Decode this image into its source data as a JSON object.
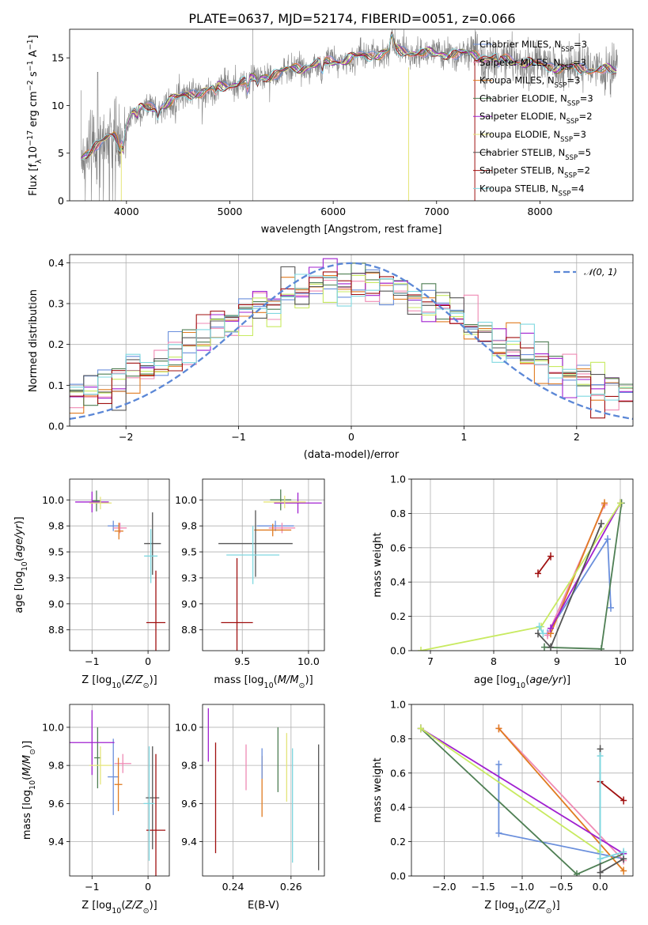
{
  "title": "PLATE=0637, MJD=52174, FIBERID=0051, z=0.066",
  "colors": {
    "chabrier_miles": "#6a8fdc",
    "salpeter_miles": "#ef8ab4",
    "kroupa_miles": "#e07b20",
    "chabrier_elodie": "#4f7f54",
    "salpeter_elodie": "#a020d0",
    "kroupa_elodie": "#e5e57a",
    "chabrier_stelib": "#555555",
    "salpeter_stelib": "#a01010",
    "kroupa_stelib": "#7fd8e0",
    "data": "#808080",
    "normal": "#5b87d6",
    "gold": "#c8ea60"
  },
  "chart_data": [
    {
      "id": "spectrum",
      "type": "line",
      "xlabel": "wavelength [Angstrom, rest frame]",
      "ylabel": "Flux [f_λ 10^-17 erg cm^-2 s^-1 A^-1]",
      "xlim": [
        3450,
        8900
      ],
      "ylim": [
        0,
        18
      ],
      "xticks": [
        4000,
        5000,
        6000,
        7000,
        8000
      ],
      "yticks": [
        0,
        5,
        10,
        15
      ],
      "legend_position": "upper right",
      "legend": [
        {
          "color_key": "chabrier_miles",
          "label": "Chabrier MILES, N",
          "sub": "SSP",
          "tail": "=3"
        },
        {
          "color_key": "salpeter_miles",
          "label": "Salpeter MILES, N",
          "sub": "SSP",
          "tail": "=3"
        },
        {
          "color_key": "kroupa_miles",
          "label": "Kroupa MILES, N",
          "sub": "SSP",
          "tail": "=3"
        },
        {
          "color_key": "chabrier_elodie",
          "label": "Chabrier ELODIE, N",
          "sub": "SSP",
          "tail": "=3"
        },
        {
          "color_key": "salpeter_elodie",
          "label": "Salpeter ELODIE, N",
          "sub": "SSP",
          "tail": "=2"
        },
        {
          "color_key": "kroupa_elodie",
          "label": "Kroupa ELODIE, N",
          "sub": "SSP",
          "tail": "=3"
        },
        {
          "color_key": "chabrier_stelib",
          "label": "Chabrier STELIB, N",
          "sub": "SSP",
          "tail": "=5"
        },
        {
          "color_key": "salpeter_stelib",
          "label": "Salpeter STELIB, N",
          "sub": "SSP",
          "tail": "=2"
        },
        {
          "color_key": "kroupa_stelib",
          "label": "Kroupa STELIB, N",
          "sub": "SSP",
          "tail": "=4"
        }
      ],
      "continuum": [
        [
          3560,
          4.4
        ],
        [
          3650,
          5.4
        ],
        [
          3700,
          5.8
        ],
        [
          3800,
          6.4
        ],
        [
          3880,
          6.8
        ],
        [
          3930,
          6.0
        ],
        [
          3970,
          6.4
        ],
        [
          4000,
          8.2
        ],
        [
          4050,
          9.4
        ],
        [
          4150,
          9.6
        ],
        [
          4300,
          9.7
        ],
        [
          4400,
          10.4
        ],
        [
          4600,
          11.2
        ],
        [
          4800,
          11.7
        ],
        [
          5000,
          12.2
        ],
        [
          5200,
          12.7
        ],
        [
          5400,
          13.2
        ],
        [
          5600,
          13.8
        ],
        [
          5800,
          14.2
        ],
        [
          6000,
          14.6
        ],
        [
          6200,
          15.0
        ],
        [
          6400,
          15.4
        ],
        [
          6600,
          15.8
        ],
        [
          6800,
          15.6
        ],
        [
          7000,
          15.4
        ],
        [
          7200,
          15.5
        ],
        [
          7400,
          15.2
        ],
        [
          7600,
          14.8
        ],
        [
          7800,
          14.6
        ],
        [
          8000,
          14.2
        ],
        [
          8200,
          14.0
        ],
        [
          8400,
          13.9
        ],
        [
          8600,
          13.8
        ],
        [
          8750,
          13.6
        ]
      ]
    },
    {
      "id": "residuals",
      "type": "step",
      "xlabel": "(data-model)/error",
      "ylabel": "Normed distribution",
      "xlim": [
        -2.5,
        2.5
      ],
      "ylim": [
        0,
        0.42
      ],
      "xticks": [
        -2,
        -1,
        0,
        1,
        2
      ],
      "yticks": [
        0.0,
        0.1,
        0.2,
        0.3,
        0.4
      ],
      "legend_label": "𝒩(0, 1)",
      "bins": 40
    },
    {
      "id": "age_vs_Z",
      "type": "errorbar",
      "xlabel": "Z [log10(Z/Z⊙)]",
      "ylabel": "age  [log10(age/yr)]",
      "xlim": [
        -1.4,
        0.38
      ],
      "ylim": [
        8.55,
        10.2
      ],
      "xticks": [
        -1,
        0
      ],
      "yticks": [
        8.75,
        9.0,
        9.25,
        9.5,
        9.75,
        10.0
      ],
      "points": [
        {
          "c": "chabrier_miles",
          "x": -0.62,
          "y": 9.75,
          "xe": 0.1,
          "ye": 0.05
        },
        {
          "c": "salpeter_miles",
          "x": -0.5,
          "y": 9.73,
          "xe": 0.12,
          "ye": 0.05
        },
        {
          "c": "kroupa_miles",
          "x": -0.52,
          "y": 9.7,
          "xe": 0.08,
          "ye": 0.08
        },
        {
          "c": "chabrier_elodie",
          "x": -0.92,
          "y": 9.99,
          "xe": 0.08,
          "ye": 0.1
        },
        {
          "c": "salpeter_elodie",
          "x": -1.0,
          "y": 9.98,
          "xe": 0.3,
          "ye": 0.1
        },
        {
          "c": "kroupa_elodie",
          "x": -0.85,
          "y": 9.97,
          "xe": 0.2,
          "ye": 0.06
        },
        {
          "c": "chabrier_stelib",
          "x": 0.08,
          "y": 9.58,
          "xe": 0.15,
          "ye": 0.3
        },
        {
          "c": "salpeter_stelib",
          "x": 0.14,
          "y": 8.82,
          "xe": 0.17,
          "ye": 0.5
        },
        {
          "c": "kroupa_stelib",
          "x": 0.05,
          "y": 9.46,
          "xe": 0.12,
          "ye": 0.26
        }
      ]
    },
    {
      "id": "age_vs_mass",
      "type": "errorbar",
      "xlabel": "mass [log10(M/M⊙)]",
      "ylabel": "",
      "xlim": [
        9.2,
        10.12
      ],
      "ylim": [
        8.55,
        10.2
      ],
      "xticks": [
        9.5,
        10.0
      ],
      "yticks": [
        8.75,
        9.0,
        9.25,
        9.5,
        9.75,
        10.0
      ],
      "points": [
        {
          "c": "chabrier_miles",
          "x": 9.75,
          "y": 9.75,
          "xe": 0.14,
          "ye": 0.05
        },
        {
          "c": "salpeter_miles",
          "x": 9.8,
          "y": 9.73,
          "xe": 0.1,
          "ye": 0.05
        },
        {
          "c": "kroupa_miles",
          "x": 9.73,
          "y": 9.71,
          "xe": 0.14,
          "ye": 0.06
        },
        {
          "c": "chabrier_elodie",
          "x": 9.79,
          "y": 10.0,
          "xe": 0.08,
          "ye": 0.1
        },
        {
          "c": "salpeter_elodie",
          "x": 9.92,
          "y": 9.97,
          "xe": 0.18,
          "ye": 0.1
        },
        {
          "c": "kroupa_elodie",
          "x": 9.82,
          "y": 9.98,
          "xe": 0.16,
          "ye": 0.06
        },
        {
          "c": "chabrier_stelib",
          "x": 9.6,
          "y": 9.58,
          "xe": 0.28,
          "ye": 0.32
        },
        {
          "c": "salpeter_stelib",
          "x": 9.46,
          "y": 8.82,
          "xe": 0.12,
          "ye": 0.62
        },
        {
          "c": "kroupa_stelib",
          "x": 9.58,
          "y": 9.47,
          "xe": 0.2,
          "ye": 0.28
        }
      ]
    },
    {
      "id": "weight_vs_age",
      "type": "line",
      "xlabel": "age  [log10(age/yr)]",
      "ylabel": "mass weight",
      "xlim": [
        6.7,
        10.2
      ],
      "ylim": [
        0,
        1.0
      ],
      "xticks": [
        7,
        8,
        9,
        10
      ],
      "yticks": [
        0.0,
        0.2,
        0.4,
        0.6,
        0.8,
        1.0
      ],
      "series": [
        {
          "c": "chabrier_miles",
          "x": [
            8.85,
            9.8,
            9.85
          ],
          "y": [
            0.1,
            0.65,
            0.25
          ]
        },
        {
          "c": "salpeter_miles",
          "x": [
            8.85,
            9.75
          ],
          "y": [
            0.09,
            0.85
          ]
        },
        {
          "c": "kroupa_miles",
          "x": [
            8.9,
            9.75
          ],
          "y": [
            0.1,
            0.86
          ]
        },
        {
          "c": "chabrier_elodie",
          "x": [
            8.8,
            9.7,
            10.02
          ],
          "y": [
            0.02,
            0.01,
            0.86
          ]
        },
        {
          "c": "salpeter_elodie",
          "x": [
            8.9,
            10.0
          ],
          "y": [
            0.13,
            0.86
          ]
        },
        {
          "c": "kroupa_elodie",
          "x": [
            6.85,
            8.75,
            10.0
          ],
          "y": [
            0.0,
            0.14,
            0.86
          ]
        },
        {
          "c": "chabrier_stelib",
          "x": [
            8.7,
            8.9,
            9.7
          ],
          "y": [
            0.1,
            0.02,
            0.74
          ]
        },
        {
          "c": "salpeter_stelib",
          "x": [
            8.7,
            8.9
          ],
          "y": [
            0.45,
            0.55
          ]
        },
        {
          "c": "kroupa_stelib",
          "x": [
            8.72,
            8.78
          ],
          "y": [
            0.14,
            0.1
          ]
        }
      ]
    },
    {
      "id": "mass_vs_Z",
      "type": "errorbar",
      "xlabel": "Z [log10(Z/Z⊙)]",
      "ylabel": "mass [log10(M/M⊙)]",
      "xlim": [
        -1.4,
        0.38
      ],
      "ylim": [
        9.22,
        10.12
      ],
      "xticks": [
        -1,
        0
      ],
      "yticks": [
        9.4,
        9.6,
        9.8,
        10.0
      ],
      "points": [
        {
          "c": "chabrier_miles",
          "x": -0.62,
          "y": 9.74,
          "xe": 0.1,
          "ye": 0.2
        },
        {
          "c": "salpeter_miles",
          "x": -0.45,
          "y": 9.81,
          "xe": 0.15,
          "ye": 0.05
        },
        {
          "c": "kroupa_miles",
          "x": -0.53,
          "y": 9.7,
          "xe": 0.07,
          "ye": 0.14
        },
        {
          "c": "chabrier_elodie",
          "x": -0.9,
          "y": 9.84,
          "xe": 0.06,
          "ye": 0.16
        },
        {
          "c": "salpeter_elodie",
          "x": -1.0,
          "y": 9.92,
          "xe": 0.4,
          "ye": 0.17
        },
        {
          "c": "kroupa_elodie",
          "x": -0.85,
          "y": 9.8,
          "xe": 0.2,
          "ye": 0.1
        },
        {
          "c": "chabrier_stelib",
          "x": 0.08,
          "y": 9.63,
          "xe": 0.12,
          "ye": 0.27
        },
        {
          "c": "salpeter_stelib",
          "x": 0.14,
          "y": 9.46,
          "xe": 0.17,
          "ye": 0.4
        },
        {
          "c": "kroupa_stelib",
          "x": 0.02,
          "y": 9.6,
          "xe": 0.1,
          "ye": 0.3
        }
      ]
    },
    {
      "id": "mass_vs_ebv",
      "type": "errorbar",
      "xlabel": "E(B-V)",
      "ylabel": "",
      "xlim": [
        0.2295,
        0.2715
      ],
      "ylim": [
        9.22,
        10.12
      ],
      "xticks": [
        0.24,
        0.26
      ],
      "yticks": [
        9.4,
        9.6,
        9.8,
        10.0
      ],
      "points": [
        {
          "c": "salpeter_elodie",
          "x": 0.2315,
          "y": 9.96,
          "xe": 0,
          "ye": 0.14
        },
        {
          "c": "salpeter_stelib",
          "x": 0.234,
          "y": 9.63,
          "xe": 0,
          "ye": 0.29
        },
        {
          "c": "salpeter_miles",
          "x": 0.2445,
          "y": 9.79,
          "xe": 0,
          "ye": 0.12
        },
        {
          "c": "kroupa_miles",
          "x": 0.25,
          "y": 9.69,
          "xe": 0,
          "ye": 0.16
        },
        {
          "c": "chabrier_miles",
          "x": 0.25,
          "y": 9.81,
          "xe": 0,
          "ye": 0.08
        },
        {
          "c": "chabrier_elodie",
          "x": 0.2555,
          "y": 9.83,
          "xe": 0,
          "ye": 0.17
        },
        {
          "c": "kroupa_elodie",
          "x": 0.2585,
          "y": 9.79,
          "xe": 0,
          "ye": 0.18
        },
        {
          "c": "kroupa_stelib",
          "x": 0.2605,
          "y": 9.59,
          "xe": 0,
          "ye": 0.3
        },
        {
          "c": "chabrier_stelib",
          "x": 0.2695,
          "y": 9.58,
          "xe": 0,
          "ye": 0.33
        }
      ]
    },
    {
      "id": "weight_vs_Z",
      "type": "line",
      "xlabel": "Z [log10(Z/Z⊙)]",
      "ylabel": "mass weight",
      "xlim": [
        -2.42,
        0.42
      ],
      "ylim": [
        0,
        1.0
      ],
      "xticks": [
        -2.0,
        -1.5,
        -1.0,
        -0.5,
        0.0
      ],
      "yticks": [
        0.0,
        0.2,
        0.4,
        0.6,
        0.8,
        1.0
      ],
      "series": [
        {
          "c": "chabrier_miles",
          "x": [
            -1.3,
            -1.3,
            0.3
          ],
          "y": [
            0.65,
            0.25,
            0.1
          ]
        },
        {
          "c": "salpeter_miles",
          "x": [
            -1.3,
            0.3
          ],
          "y": [
            0.86,
            0.09
          ]
        },
        {
          "c": "kroupa_miles",
          "x": [
            -1.3,
            0.3
          ],
          "y": [
            0.86,
            0.03
          ]
        },
        {
          "c": "chabrier_elodie",
          "x": [
            -2.3,
            -0.3,
            0.3
          ],
          "y": [
            0.86,
            0.01,
            0.13
          ]
        },
        {
          "c": "salpeter_elodie",
          "x": [
            -2.3,
            0.3
          ],
          "y": [
            0.86,
            0.13
          ]
        },
        {
          "c": "kroupa_elodie",
          "x": [
            -2.3,
            0.0
          ],
          "y": [
            0.86,
            0.14
          ]
        },
        {
          "c": "chabrier_stelib",
          "x": [
            0.0,
            0.0,
            0.3
          ],
          "y": [
            0.74,
            0.02,
            0.1
          ]
        },
        {
          "c": "salpeter_stelib",
          "x": [
            0.0,
            0.3
          ],
          "y": [
            0.55,
            0.44
          ]
        },
        {
          "c": "kroupa_stelib",
          "x": [
            0.0,
            0.0,
            0.3
          ],
          "y": [
            0.7,
            0.1,
            0.14
          ]
        }
      ]
    }
  ]
}
